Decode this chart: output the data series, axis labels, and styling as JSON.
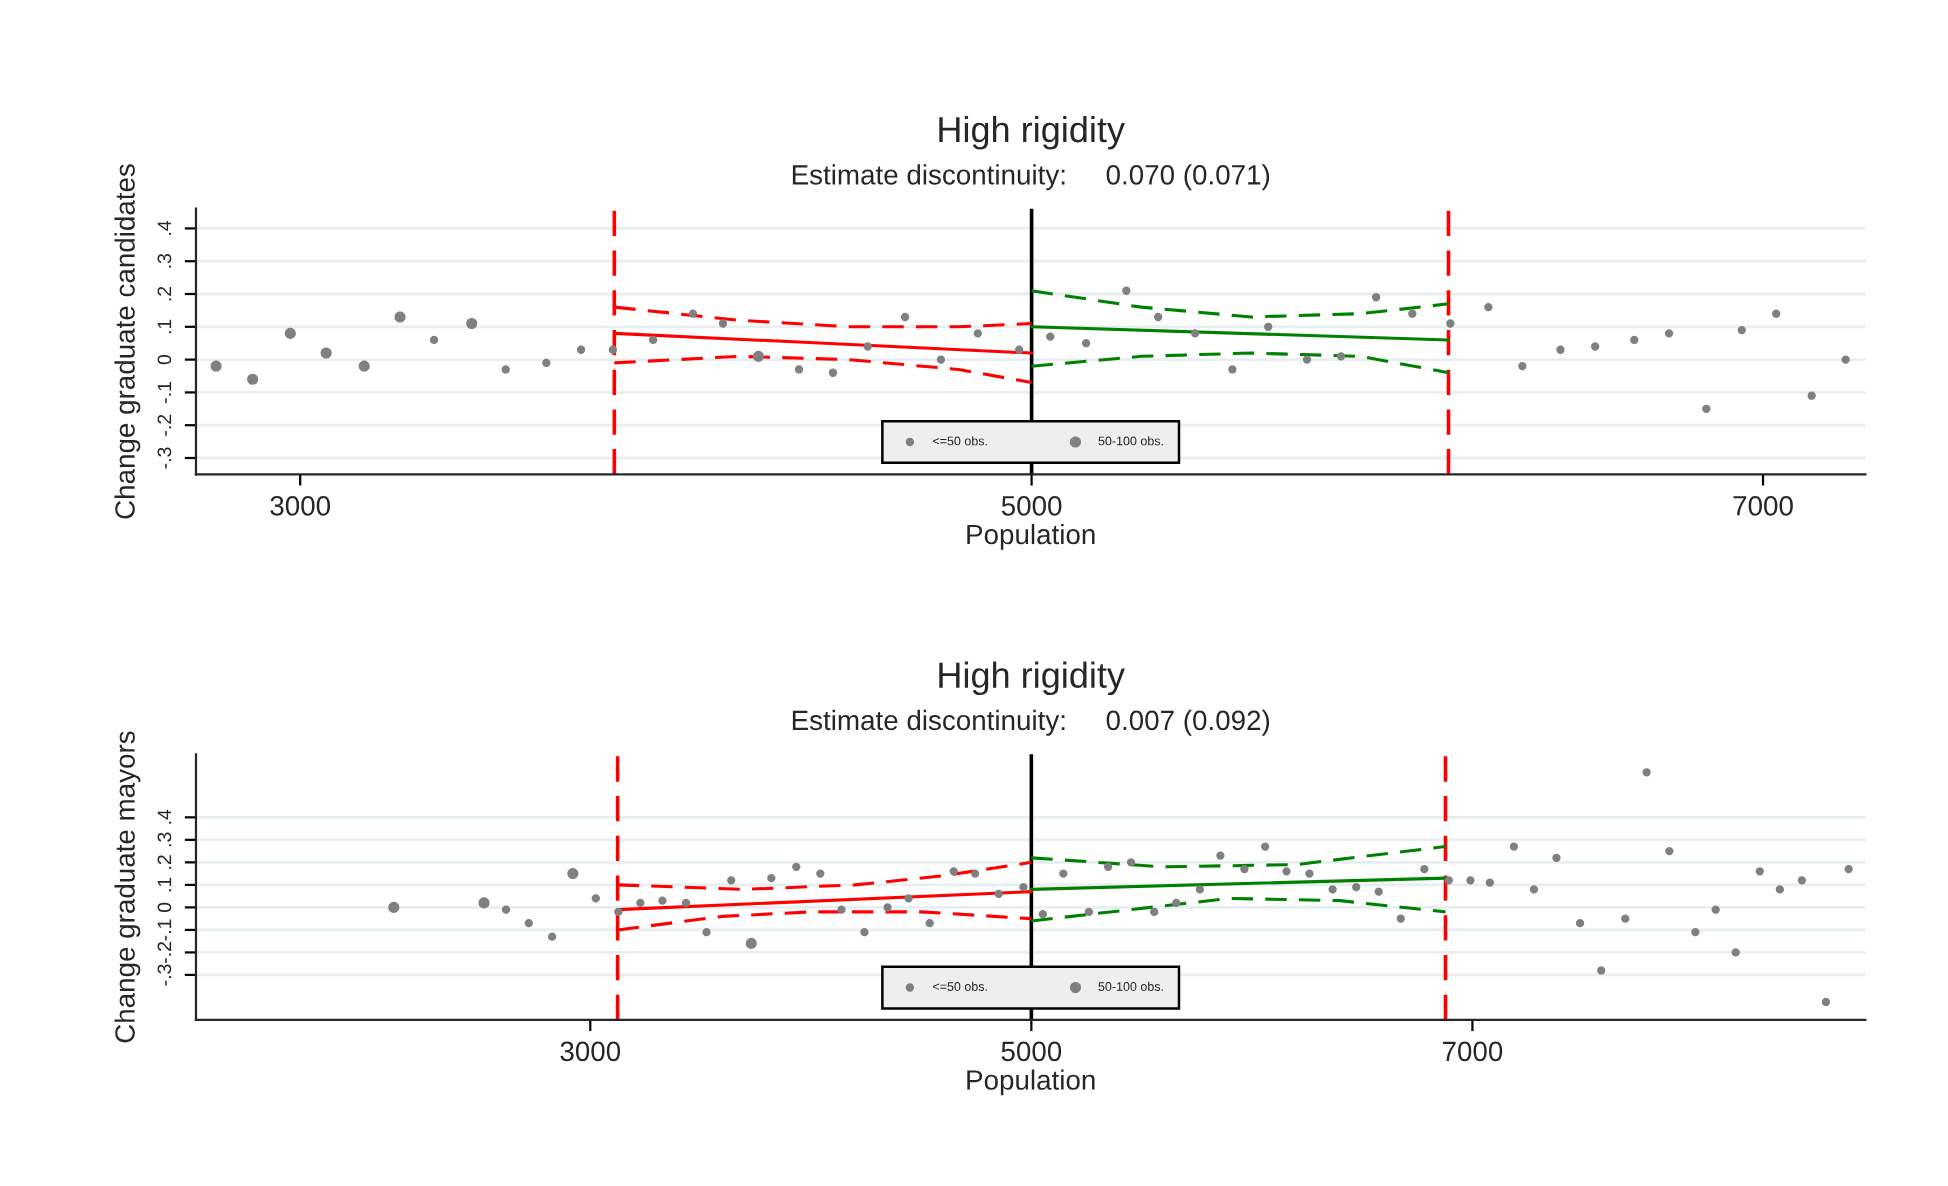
{
  "chart_data": [
    {
      "type": "scatter",
      "title": "High rigidity",
      "subtitle": "Estimate discontinuity:     0.070 (0.071)",
      "xlabel": "Population",
      "ylabel": "Change graduate candidates",
      "xlim": [
        2715,
        7280
      ],
      "xticks": [
        3000,
        5000,
        7000
      ],
      "ylim": [
        -0.35,
        0.46
      ],
      "yticks": [
        {
          "value": -0.3,
          "label": "-.3"
        },
        {
          "value": -0.2,
          "label": "-.2"
        },
        {
          "value": -0.1,
          "label": "-.1"
        },
        0,
        {
          "value": 0.1,
          "label": ".1"
        },
        {
          "value": 0.2,
          "label": ".2"
        },
        {
          "value": 0.3,
          "label": ".3"
        },
        {
          "value": 0.4,
          "label": ".4"
        }
      ],
      "grid": "y",
      "legend": "bottom",
      "ref_lines": [
        {
          "axis": "x",
          "value": 3859,
          "color": "#ff0000",
          "line_style": "dashed"
        },
        {
          "axis": "x",
          "value": 5000,
          "color": "#000000",
          "line_style": "solid"
        },
        {
          "axis": "x",
          "value": 6140,
          "color": "#ff0000",
          "line_style": "dashed"
        }
      ],
      "series": [
        {
          "name": "<=50 obs.",
          "color": "#808080",
          "x": [
            3366,
            3562,
            3673,
            3768,
            3855,
            3965,
            4074,
            4156,
            4364,
            4457,
            4552,
            4654,
            4752,
            4853,
            4966,
            5051,
            5149,
            5259,
            5346,
            5447,
            5549,
            5647,
            5753,
            5846,
            5942,
            6041,
            6145,
            6249,
            6342,
            6446,
            6541,
            6648,
            6743,
            6845,
            6942,
            7036,
            7133,
            7226
          ],
          "values": [
            0.06,
            -0.03,
            -0.01,
            0.03,
            0.03,
            0.06,
            0.14,
            0.11,
            -0.03,
            -0.04,
            0.04,
            0.13,
            0.0,
            0.08,
            0.03,
            0.07,
            0.05,
            0.21,
            0.13,
            0.08,
            -0.03,
            0.1,
            0.0,
            0.01,
            0.19,
            0.14,
            0.11,
            0.16,
            -0.02,
            0.03,
            0.04,
            0.06,
            0.08,
            -0.15,
            0.09,
            0.14,
            -0.11,
            0.0
          ]
        },
        {
          "name": "50-100 obs.",
          "color": "#808080",
          "x": [
            2770,
            2870,
            2973,
            3071,
            3175,
            3273,
            3469,
            4253
          ],
          "values": [
            -0.02,
            -0.06,
            0.08,
            0.02,
            -0.02,
            0.13,
            0.11,
            0.01
          ]
        },
        {
          "type": "line",
          "color": "#ff0000",
          "line_style": "solid",
          "x": [
            3859,
            5000
          ],
          "values": [
            0.08,
            0.02
          ]
        },
        {
          "type": "line",
          "color": "#ff0000",
          "line_style": "dashed",
          "x": [
            3859,
            4200,
            4500,
            4800,
            5000
          ],
          "values": [
            0.16,
            0.12,
            0.1,
            0.1,
            0.11
          ]
        },
        {
          "type": "line",
          "color": "#ff0000",
          "line_style": "dashed",
          "x": [
            3859,
            4200,
            4500,
            4800,
            5000
          ],
          "values": [
            -0.01,
            0.01,
            0.0,
            -0.03,
            -0.07
          ]
        },
        {
          "type": "line",
          "color": "#008000",
          "line_style": "solid",
          "x": [
            5000,
            6140
          ],
          "values": [
            0.1,
            0.06
          ]
        },
        {
          "type": "line",
          "color": "#008000",
          "line_style": "dashed",
          "x": [
            5000,
            5300,
            5600,
            5900,
            6140
          ],
          "values": [
            0.21,
            0.16,
            0.13,
            0.14,
            0.17
          ]
        },
        {
          "type": "line",
          "color": "#008000",
          "line_style": "dashed",
          "x": [
            5000,
            5300,
            5600,
            5900,
            6140
          ],
          "values": [
            -0.02,
            0.01,
            0.02,
            0.01,
            -0.04
          ]
        }
      ]
    },
    {
      "type": "scatter",
      "title": "High rigidity",
      "subtitle": "Estimate discontinuity:     0.007 (0.092)",
      "xlabel": "Population",
      "ylabel": "Change graduate mayors",
      "xlim": [
        1212,
        8782
      ],
      "xticks": [
        3000,
        5000,
        7000
      ],
      "ylim": [
        -0.5,
        0.68
      ],
      "yticks": [
        {
          "value": -0.3,
          "label": "-.3"
        },
        {
          "value": -0.2,
          "label": "-.2"
        },
        {
          "value": -0.1,
          "label": "-.1"
        },
        0,
        {
          "value": 0.1,
          "label": ".1"
        },
        {
          "value": 0.2,
          "label": ".2"
        },
        {
          "value": 0.3,
          "label": ".3"
        },
        {
          "value": 0.4,
          "label": ".4"
        }
      ],
      "grid": "y",
      "legend": "bottom",
      "ref_lines": [
        {
          "axis": "x",
          "value": 3124,
          "color": "#ff0000",
          "line_style": "dashed"
        },
        {
          "axis": "x",
          "value": 5000,
          "color": "#000000",
          "line_style": "solid"
        },
        {
          "axis": "x",
          "value": 6878,
          "color": "#ff0000",
          "line_style": "dashed"
        }
      ],
      "series": [
        {
          "name": "<=50 obs.",
          "color": "#808080",
          "x": [
            2618,
            2721,
            2827,
            3025,
            3127,
            3227,
            3327,
            3434,
            3527,
            3639,
            3821,
            3934,
            4043,
            4139,
            4243,
            4348,
            4443,
            4539,
            4648,
            4745,
            4852,
            4964,
            5052,
            5145,
            5261,
            5348,
            5452,
            5557,
            5657,
            5764,
            5857,
            5966,
            6060,
            6157,
            6261,
            6366,
            6473,
            6575,
            6675,
            6782,
            6893,
            6991,
            7079,
            7188,
            7279,
            7381,
            7488,
            7584,
            7693,
            7790,
            7893,
            8011,
            8103,
            8194,
            8303,
            8394,
            8494,
            8603,
            8706
          ],
          "values": [
            -0.01,
            -0.07,
            -0.13,
            0.04,
            -0.02,
            0.02,
            0.03,
            0.02,
            -0.11,
            0.12,
            0.13,
            0.18,
            0.15,
            -0.01,
            -0.11,
            0.0,
            0.04,
            -0.07,
            0.16,
            0.15,
            0.06,
            0.09,
            -0.03,
            0.15,
            -0.02,
            0.18,
            0.2,
            -0.02,
            0.02,
            0.08,
            0.23,
            0.17,
            0.27,
            0.16,
            0.15,
            0.08,
            0.09,
            0.07,
            -0.05,
            0.17,
            0.12,
            0.12,
            0.11,
            0.27,
            0.08,
            0.22,
            -0.07,
            -0.28,
            -0.05,
            0.6,
            0.25,
            -0.11,
            -0.01,
            -0.2,
            0.16,
            0.08,
            0.12,
            -0.42,
            0.17
          ]
        },
        {
          "name": "50-100 obs.",
          "color": "#808080",
          "x": [
            2109,
            2518,
            2921,
            3730
          ],
          "values": [
            0.0,
            0.02,
            0.15,
            -0.16
          ]
        },
        {
          "type": "line",
          "color": "#ff0000",
          "line_style": "solid",
          "x": [
            3124,
            5000
          ],
          "values": [
            -0.01,
            0.07
          ]
        },
        {
          "type": "line",
          "color": "#ff0000",
          "line_style": "dashed",
          "x": [
            3124,
            3700,
            4200,
            4600,
            5000
          ],
          "values": [
            0.1,
            0.08,
            0.1,
            0.14,
            0.2
          ]
        },
        {
          "type": "line",
          "color": "#ff0000",
          "line_style": "dashed",
          "x": [
            3124,
            3600,
            4000,
            4500,
            5000
          ],
          "values": [
            -0.1,
            -0.04,
            -0.02,
            -0.02,
            -0.05
          ]
        },
        {
          "type": "line",
          "color": "#008000",
          "line_style": "solid",
          "x": [
            5000,
            6878
          ],
          "values": [
            0.08,
            0.13
          ]
        },
        {
          "type": "line",
          "color": "#008000",
          "line_style": "dashed",
          "x": [
            5000,
            5600,
            6200,
            6878
          ],
          "values": [
            0.22,
            0.18,
            0.19,
            0.27
          ]
        },
        {
          "type": "line",
          "color": "#008000",
          "line_style": "dashed",
          "x": [
            5000,
            5900,
            6400,
            6878
          ],
          "values": [
            -0.06,
            0.04,
            0.03,
            -0.02
          ]
        }
      ]
    }
  ]
}
